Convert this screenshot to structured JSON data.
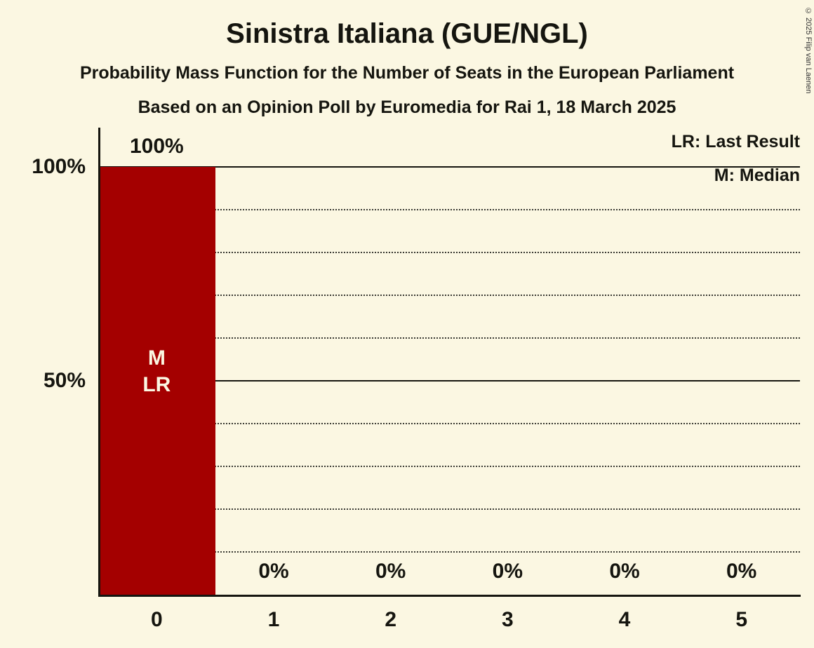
{
  "title": "Sinistra Italiana (GUE/NGL)",
  "subtitle1": "Probability Mass Function for the Number of Seats in the European Parliament",
  "subtitle2": "Based on an Opinion Poll by Euromedia for Rai 1, 18 March 2025",
  "legend": {
    "lr": "LR: Last Result",
    "m": "M: Median"
  },
  "copyright": "© 2025 Filip van Laenen",
  "colors": {
    "background": "#FBF7E2",
    "bar": "#A40000",
    "bar_text": "#FBF7E2",
    "text": "#15150F"
  },
  "chart_data": {
    "type": "bar",
    "title": "Sinistra Italiana (GUE/NGL) — Probability Mass Function for the Number of Seats in the European Parliament",
    "categories": [
      "0",
      "1",
      "2",
      "3",
      "4",
      "5"
    ],
    "values": [
      100,
      0,
      0,
      0,
      0,
      0
    ],
    "value_labels": [
      "100%",
      "0%",
      "0%",
      "0%",
      "0%",
      "0%"
    ],
    "ylim": [
      0,
      100
    ],
    "y_ticks": [
      {
        "value": 100,
        "label": "100%"
      },
      {
        "value": 50,
        "label": "50%"
      }
    ],
    "gridlines": {
      "dotted_step": 10,
      "solid_at": [
        50,
        100
      ]
    },
    "annotations": [
      {
        "category_index": 0,
        "lines": [
          "M",
          "LR"
        ]
      }
    ],
    "legend_position": "top-right",
    "legend_entries": [
      "LR: Last Result",
      "M: Median"
    ]
  }
}
